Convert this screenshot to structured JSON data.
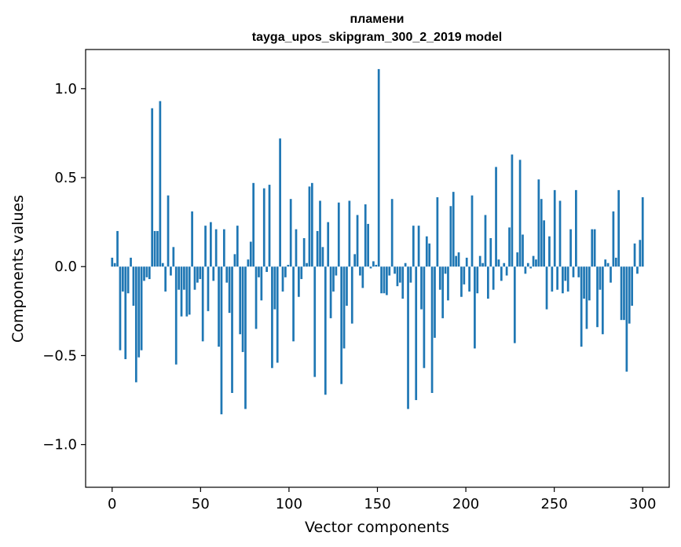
{
  "chart_data": {
    "type": "bar",
    "title_line1": "пламени",
    "title_line2": "tayga_upos_skipgram_300_2_2019 model",
    "xlabel": "Vector components",
    "ylabel": "Components values",
    "xlim": [
      -15,
      315
    ],
    "ylim": [
      -1.24,
      1.22
    ],
    "xticks": [
      0,
      50,
      100,
      150,
      200,
      250,
      300
    ],
    "yticks": [
      1.0,
      0.5,
      0.0,
      -0.5,
      -1.0
    ],
    "ytick_labels": [
      "1.0",
      "0.5",
      "0.0",
      "−0.5",
      "−1.0"
    ],
    "bar_color": "#1f77b4",
    "grid": false,
    "values": [
      0.05,
      0.02,
      0.2,
      -0.47,
      -0.14,
      -0.52,
      -0.15,
      0.05,
      -0.22,
      -0.65,
      -0.51,
      -0.47,
      -0.08,
      -0.06,
      -0.07,
      0.89,
      0.2,
      0.2,
      0.93,
      0.02,
      -0.14,
      0.4,
      -0.05,
      0.11,
      -0.55,
      -0.13,
      -0.28,
      -0.13,
      -0.28,
      -0.27,
      0.31,
      -0.13,
      -0.09,
      -0.07,
      -0.42,
      0.23,
      -0.25,
      0.25,
      -0.08,
      0.21,
      -0.45,
      -0.83,
      0.21,
      -0.09,
      -0.26,
      -0.71,
      0.07,
      0.23,
      -0.38,
      -0.48,
      -0.8,
      0.04,
      0.14,
      0.47,
      -0.35,
      -0.06,
      -0.19,
      0.44,
      -0.03,
      0.46,
      -0.57,
      -0.24,
      -0.54,
      0.72,
      -0.14,
      -0.06,
      0.01,
      0.38,
      -0.42,
      0.21,
      -0.17,
      -0.07,
      0.16,
      0.02,
      0.45,
      0.47,
      -0.62,
      0.2,
      0.37,
      0.11,
      -0.72,
      0.25,
      -0.29,
      -0.14,
      -0.05,
      0.36,
      -0.66,
      -0.46,
      -0.22,
      0.37,
      -0.32,
      0.07,
      0.29,
      -0.05,
      -0.12,
      0.35,
      0.24,
      -0.01,
      0.03,
      0.01,
      1.11,
      -0.15,
      -0.15,
      -0.16,
      -0.05,
      0.38,
      -0.04,
      -0.11,
      -0.09,
      -0.18,
      0.02,
      -0.8,
      -0.09,
      0.23,
      -0.75,
      0.23,
      -0.24,
      -0.57,
      0.17,
      0.13,
      -0.71,
      -0.4,
      0.39,
      -0.13,
      -0.29,
      -0.04,
      -0.19,
      0.34,
      0.42,
      0.06,
      0.08,
      -0.17,
      -0.1,
      0.05,
      -0.14,
      0.4,
      -0.46,
      -0.15,
      0.06,
      0.02,
      0.29,
      -0.18,
      0.16,
      -0.13,
      0.56,
      0.04,
      -0.08,
      0.02,
      -0.05,
      0.22,
      0.63,
      -0.43,
      0.08,
      0.6,
      0.18,
      -0.04,
      0.02,
      -0.01,
      0.06,
      0.04,
      0.49,
      0.38,
      0.26,
      -0.24,
      0.17,
      -0.14,
      0.43,
      -0.13,
      0.37,
      -0.15,
      -0.08,
      -0.14,
      0.21,
      -0.06,
      0.43,
      -0.06,
      -0.45,
      -0.18,
      -0.35,
      -0.19,
      0.21,
      0.21,
      -0.34,
      -0.13,
      -0.38,
      0.04,
      0.02,
      -0.09,
      0.31,
      0.05,
      0.43,
      -0.3,
      -0.3,
      -0.59,
      -0.32,
      -0.22,
      0.13,
      -0.04,
      0.15,
      0.39
    ]
  }
}
